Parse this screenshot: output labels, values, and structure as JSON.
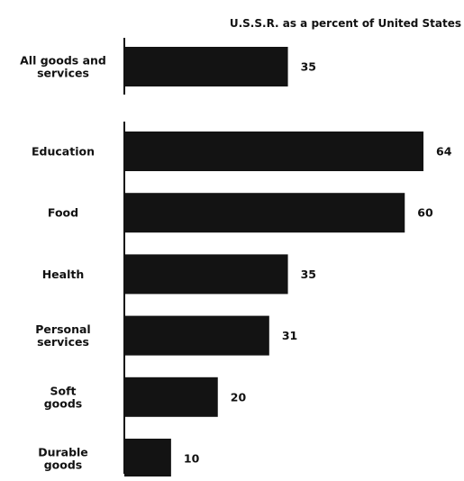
{
  "chart_data": {
    "type": "bar",
    "orientation": "horizontal",
    "subtitle": "U.S.S.R. as a percent of United States",
    "summary": {
      "category": [
        "All goods and",
        "services"
      ],
      "value": 35
    },
    "categories": [
      [
        "Education"
      ],
      [
        "Food"
      ],
      [
        "Health"
      ],
      [
        "Personal",
        "services"
      ],
      [
        "Soft",
        "goods"
      ],
      [
        "Durable",
        "goods"
      ]
    ],
    "values": [
      64,
      60,
      35,
      31,
      20,
      10
    ],
    "xlim": [
      0,
      64
    ],
    "grid": false,
    "legend": "none",
    "bar_color": "#131313"
  }
}
